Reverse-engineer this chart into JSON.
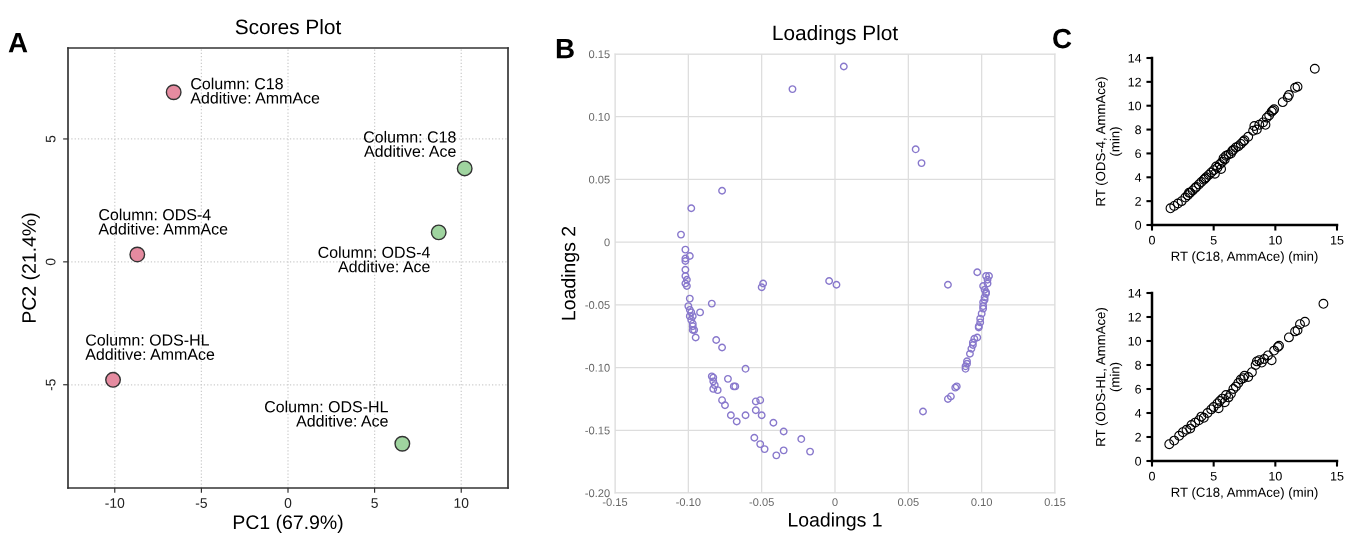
{
  "chart_data": [
    {
      "type": "scatter",
      "title": "Scores Plot",
      "xlabel": "PC1 (67.9%)",
      "ylabel": "PC2 (21.4%)",
      "annotations": [
        "A",
        {
          "text": "Column: C18\nAdditive: AmmAce",
          "x": -6.6,
          "y": 6.9
        },
        {
          "text": "Column: ODS-4\nAdditive: AmmAce",
          "x": -8.7,
          "y": 0.3
        },
        {
          "text": "Column: ODS-HL\nAdditive: AmmAce",
          "x": -10.1,
          "y": -4.8
        },
        {
          "text": "Column: C18\nAdditive: Ace",
          "x": 10.2,
          "y": 3.8
        },
        {
          "text": "Column: ODS-4\nAdditive: Ace",
          "x": 8.7,
          "y": 1.2
        },
        {
          "text": "Column: ODS-HL\nAdditive: Ace",
          "x": 6.6,
          "y": -7.4
        }
      ],
      "x": [
        -6.6,
        -8.7,
        -10.1,
        10.2,
        8.7,
        6.6
      ],
      "values": [
        6.9,
        0.3,
        -4.8,
        3.8,
        1.2,
        -7.4
      ],
      "colors": [
        "#e58ba0",
        "#e58ba0",
        "#e58ba0",
        "#9fd49f",
        "#9fd49f",
        "#9fd49f"
      ],
      "xlim": [
        -12.7,
        12.7
      ],
      "ylim": [
        -9.2,
        8.7
      ],
      "xticks": [
        -10,
        -5,
        0,
        5,
        10
      ],
      "yticks": [
        -5,
        0,
        5
      ],
      "grid": true,
      "marker": "circle"
    },
    {
      "type": "scatter",
      "title": "Loadings Plot",
      "xlabel": "Loadings 1",
      "ylabel": "Loadings 2",
      "annotations": [
        "B"
      ],
      "color": "#8878cc",
      "marker": "circle",
      "grid": true,
      "x": [
        0.006,
        -0.029,
        -0.077,
        -0.098,
        -0.105,
        -0.102,
        -0.099,
        -0.102,
        -0.102,
        -0.102,
        -0.102,
        -0.101,
        -0.102,
        -0.101,
        -0.099,
        -0.1,
        -0.099,
        -0.098,
        -0.099,
        -0.097,
        -0.098,
        -0.097,
        -0.097,
        -0.097,
        -0.096,
        -0.095,
        -0.084,
        -0.092,
        -0.081,
        -0.077,
        -0.061,
        -0.084,
        -0.083,
        -0.083,
        -0.082,
        -0.083,
        -0.08,
        -0.073,
        -0.069,
        -0.068,
        -0.077,
        -0.075,
        -0.071,
        -0.067,
        -0.061,
        -0.054,
        -0.051,
        -0.054,
        -0.05,
        -0.042,
        -0.035,
        -0.055,
        -0.051,
        -0.048,
        -0.04,
        -0.035,
        -0.023,
        -0.017,
        -0.049,
        -0.05,
        -0.004,
        0.001,
        0.055,
        0.059,
        0.097,
        0.077,
        0.103,
        0.105,
        0.104,
        0.104,
        0.101,
        0.102,
        0.103,
        0.103,
        0.102,
        0.102,
        0.101,
        0.101,
        0.101,
        0.1,
        0.099,
        0.099,
        0.098,
        0.098,
        0.097,
        0.095,
        0.094,
        0.094,
        0.093,
        0.092,
        0.09,
        0.09,
        0.089,
        0.089,
        0.083,
        0.082,
        0.079,
        0.077,
        0.06
      ],
      "values": [
        0.14,
        0.122,
        0.041,
        0.027,
        0.006,
        -0.006,
        -0.011,
        -0.013,
        -0.015,
        -0.022,
        -0.027,
        -0.03,
        -0.033,
        -0.035,
        -0.045,
        -0.051,
        -0.054,
        -0.056,
        -0.059,
        -0.059,
        -0.062,
        -0.065,
        -0.067,
        -0.07,
        -0.07,
        -0.076,
        -0.049,
        -0.056,
        -0.078,
        -0.084,
        -0.101,
        -0.107,
        -0.108,
        -0.111,
        -0.114,
        -0.117,
        -0.118,
        -0.109,
        -0.115,
        -0.115,
        -0.126,
        -0.13,
        -0.138,
        -0.143,
        -0.138,
        -0.127,
        -0.126,
        -0.134,
        -0.138,
        -0.144,
        -0.151,
        -0.156,
        -0.161,
        -0.165,
        -0.17,
        -0.166,
        -0.157,
        -0.167,
        -0.033,
        -0.036,
        -0.031,
        -0.034,
        0.074,
        0.063,
        -0.024,
        -0.034,
        -0.027,
        -0.027,
        -0.03,
        -0.033,
        -0.035,
        -0.038,
        -0.04,
        -0.041,
        -0.044,
        -0.046,
        -0.048,
        -0.051,
        -0.053,
        -0.057,
        -0.061,
        -0.064,
        -0.067,
        -0.068,
        -0.076,
        -0.077,
        -0.08,
        -0.082,
        -0.085,
        -0.089,
        -0.095,
        -0.097,
        -0.099,
        -0.101,
        -0.115,
        -0.116,
        -0.123,
        -0.125,
        -0.135
      ],
      "xlim": [
        -0.15,
        0.15
      ],
      "ylim": [
        -0.2,
        0.15
      ],
      "xticks": [
        {
          "value": -0.15,
          "label": "-0.15"
        },
        {
          "value": -0.1,
          "label": "-0.10"
        },
        {
          "value": -0.05,
          "label": "-0.05"
        },
        0,
        {
          "value": 0.05,
          "label": "0.05"
        },
        {
          "value": 0.1,
          "label": "0.10"
        },
        {
          "value": 0.15,
          "label": "0.15"
        }
      ],
      "yticks": [
        {
          "value": -0.2,
          "label": "-0.20"
        },
        {
          "value": -0.15,
          "label": "-0.15"
        },
        {
          "value": -0.1,
          "label": "-0.10"
        },
        {
          "value": -0.05,
          "label": "-0.05"
        },
        0,
        {
          "value": 0.05,
          "label": "0.05"
        },
        {
          "value": 0.1,
          "label": "0.10"
        },
        {
          "value": 0.15,
          "label": "0.15"
        }
      ]
    },
    {
      "type": "scatter",
      "xlabel": "RT (C18, AmmAce) (min)",
      "ylabel": "RT (ODS-4, AmmAce)\n(min)",
      "annotations": [
        "C"
      ],
      "color": "#000000",
      "marker": "circle",
      "x": [
        1.5,
        1.8,
        2.1,
        2.4,
        2.7,
        2.9,
        3.0,
        3.1,
        3.3,
        3.5,
        3.6,
        3.8,
        4.0,
        4.2,
        4.3,
        4.4,
        4.6,
        4.8,
        5.0,
        5.1,
        5.2,
        5.3,
        5.5,
        5.6,
        5.7,
        5.8,
        5.9,
        6.0,
        6.2,
        6.4,
        6.5,
        6.6,
        6.8,
        7.0,
        7.2,
        7.4,
        7.5,
        7.8,
        8.2,
        8.3,
        8.5,
        8.7,
        9.0,
        9.2,
        9.3,
        9.5,
        9.7,
        9.8,
        9.9,
        10.6,
        11.0,
        11.1,
        11.6,
        11.8,
        13.2
      ],
      "values": [
        1.4,
        1.6,
        1.8,
        2.0,
        2.3,
        2.5,
        2.7,
        2.7,
        2.9,
        3.1,
        3.2,
        3.4,
        3.6,
        3.8,
        3.9,
        4.0,
        4.2,
        4.4,
        4.6,
        4.3,
        4.9,
        4.8,
        5.1,
        4.7,
        5.3,
        5.6,
        5.5,
        5.8,
        5.9,
        6.0,
        6.2,
        6.3,
        6.5,
        6.6,
        6.8,
        7.0,
        7.1,
        7.4,
        7.9,
        8.3,
        8.0,
        8.4,
        8.6,
        8.4,
        9.0,
        9.2,
        9.5,
        9.6,
        9.7,
        10.3,
        10.7,
        10.9,
        11.5,
        11.6,
        13.1
      ],
      "xlim": [
        0,
        15
      ],
      "ylim": [
        0,
        14
      ],
      "xticks": [
        0,
        5,
        10,
        15
      ],
      "yticks": [
        0,
        2,
        4,
        6,
        8,
        10,
        12,
        14
      ]
    },
    {
      "type": "scatter",
      "xlabel": "RT (C18, AmmAce) (min)",
      "ylabel": "RT (ODS-HL, AmmAce)\n(min)",
      "color": "#000000",
      "marker": "circle",
      "x": [
        1.4,
        1.8,
        2.2,
        2.5,
        2.8,
        3.1,
        3.2,
        3.5,
        3.8,
        4.0,
        4.2,
        4.5,
        4.8,
        5.0,
        5.3,
        5.4,
        5.5,
        5.7,
        5.9,
        6.0,
        6.2,
        6.4,
        6.6,
        6.8,
        7.0,
        7.2,
        7.4,
        7.5,
        7.8,
        8.1,
        8.4,
        8.5,
        8.7,
        8.9,
        9.1,
        9.4,
        9.7,
        9.9,
        10.2,
        10.3,
        11.1,
        11.6,
        11.8,
        12.0,
        12.4,
        13.9
      ],
      "values": [
        1.4,
        1.7,
        2.1,
        2.4,
        2.6,
        2.7,
        3.0,
        3.2,
        3.4,
        3.7,
        3.6,
        4.0,
        4.3,
        4.5,
        4.8,
        4.4,
        5.0,
        5.2,
        4.9,
        5.5,
        5.3,
        5.6,
        6.0,
        6.2,
        6.5,
        6.8,
        6.9,
        7.1,
        7.0,
        7.4,
        8.0,
        8.3,
        8.4,
        8.2,
        8.5,
        8.8,
        8.4,
        9.2,
        9.5,
        9.6,
        10.3,
        10.8,
        10.9,
        11.4,
        11.6,
        13.1
      ],
      "xlim": [
        0,
        15
      ],
      "ylim": [
        0,
        14
      ],
      "xticks": [
        0,
        5,
        10,
        15
      ],
      "yticks": [
        0,
        2,
        4,
        6,
        8,
        10,
        12,
        14
      ]
    }
  ]
}
